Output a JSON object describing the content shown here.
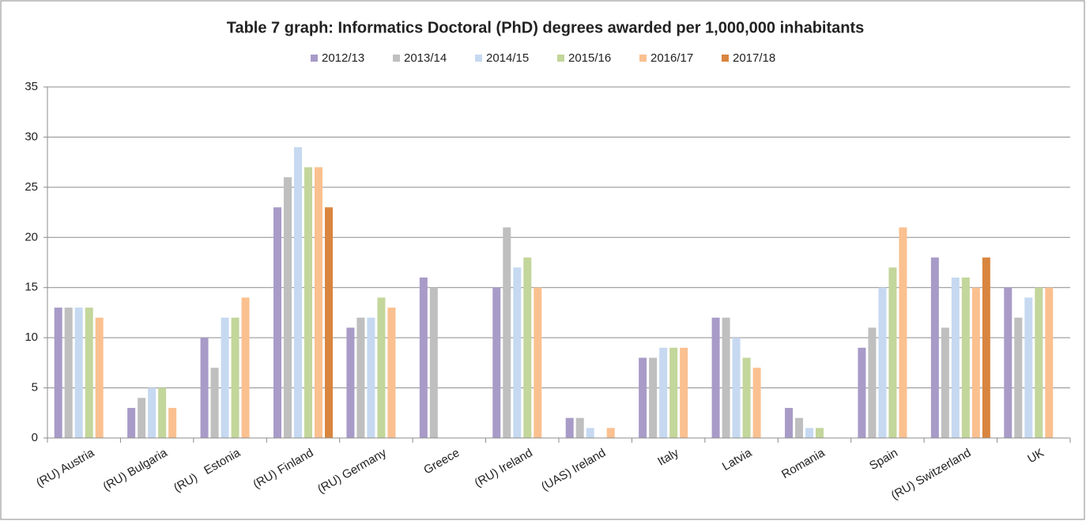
{
  "chart_data": {
    "type": "bar",
    "title": "Table 7 graph: Informatics Doctoral (PhD) degrees awarded per 1,000,000 inhabitants",
    "categories": [
      "(RU) Austria",
      "(RU) Bulgaria",
      "(RU)   Estonia",
      "(RU) Finland",
      "(RU) Germany",
      "Greece",
      "(RU) Ireland",
      "(UAS) Ireland",
      "Italy",
      "Latvia",
      "Romania",
      "Spain",
      "(RU) Switzerland",
      "UK"
    ],
    "series": [
      {
        "name": "2012/13",
        "color": "#a89bc8",
        "values": [
          13,
          3,
          10,
          23,
          11,
          16,
          15,
          2,
          8,
          12,
          3,
          9,
          18,
          15
        ]
      },
      {
        "name": "2013/14",
        "color": "#bfbfbf",
        "values": [
          13,
          4,
          7,
          26,
          12,
          15,
          21,
          2,
          8,
          12,
          2,
          11,
          11,
          12
        ]
      },
      {
        "name": "2014/15",
        "color": "#c6d9f1",
        "values": [
          13,
          5,
          12,
          29,
          12,
          null,
          17,
          1,
          9,
          10,
          1,
          15,
          16,
          14
        ]
      },
      {
        "name": "2015/16",
        "color": "#c3d69b",
        "values": [
          13,
          5,
          12,
          27,
          14,
          null,
          18,
          null,
          9,
          8,
          1,
          17,
          16,
          15
        ]
      },
      {
        "name": "2016/17",
        "color": "#fac090",
        "values": [
          12,
          3,
          14,
          27,
          13,
          null,
          15,
          1,
          9,
          7,
          null,
          21,
          15,
          15
        ]
      },
      {
        "name": "2017/18",
        "color": "#d9853f",
        "values": [
          null,
          null,
          null,
          23,
          null,
          null,
          null,
          null,
          null,
          null,
          null,
          null,
          18,
          null
        ]
      }
    ],
    "ylim": [
      0,
      35
    ],
    "yticks": [
      0,
      5,
      10,
      15,
      20,
      25,
      30,
      35
    ],
    "grid": true,
    "legend": "top"
  }
}
